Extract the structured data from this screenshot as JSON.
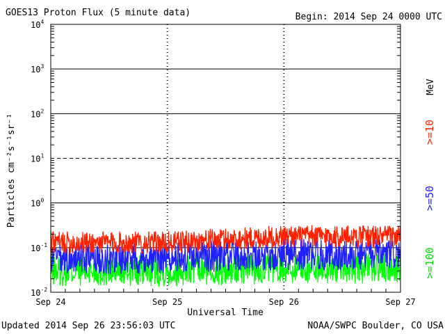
{
  "chart_data": {
    "type": "line",
    "title": "GOES13 Proton Flux (5 minute data)",
    "begin_label": "Begin: 2014 Sep 24 0000 UTC",
    "xlabel": "Universal Time",
    "ylabel": "Particles cm⁻²s⁻¹sr⁻¹",
    "yscale": "log",
    "ylim": [
      0.01,
      10000
    ],
    "xlim_days": [
      0,
      3
    ],
    "x_ticks": [
      "Sep 24",
      "Sep 25",
      "Sep 26",
      "Sep 27"
    ],
    "y_ticks": [
      {
        "base": "10",
        "exp": "-2"
      },
      {
        "base": "10",
        "exp": "-1"
      },
      {
        "base": "10",
        "exp": "0"
      },
      {
        "base": "10",
        "exp": "1"
      },
      {
        "base": "10",
        "exp": "2"
      },
      {
        "base": "10",
        "exp": "3"
      },
      {
        "base": "10",
        "exp": "4"
      }
    ],
    "threshold": {
      "value": 10,
      "style": "dashed"
    },
    "unit_label": "MeV",
    "series": [
      {
        "name": ">=10",
        "color": "#ff2000",
        "base": [
          0.13,
          0.13,
          0.18,
          0.18
        ],
        "noise": 0.25
      },
      {
        "name": ">=50",
        "color": "#2020ff",
        "base": [
          0.055,
          0.06,
          0.07,
          0.07
        ],
        "noise": 0.35
      },
      {
        "name": ">=100",
        "color": "#00ff00",
        "base": [
          0.03,
          0.03,
          0.035,
          0.035
        ],
        "noise": 0.35
      }
    ]
  },
  "footer": {
    "updated": "Updated 2014 Sep 26 23:56:03 UTC",
    "source": "NOAA/SWPC Boulder, CO USA"
  }
}
